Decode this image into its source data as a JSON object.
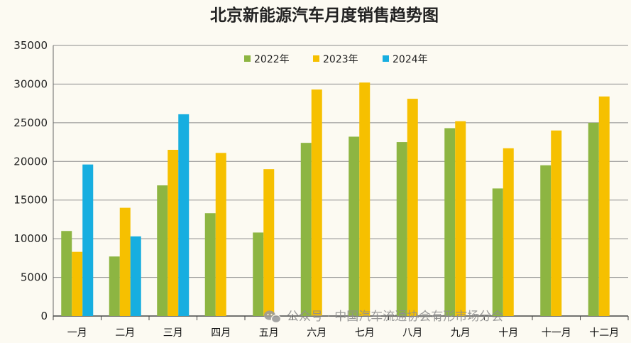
{
  "chart_data": {
    "type": "bar",
    "title": "北京新能源汽车月度销售趋势图",
    "xlabel": "",
    "ylabel": "",
    "ylim": [
      0,
      35000
    ],
    "yticks": [
      0,
      5000,
      10000,
      15000,
      20000,
      25000,
      30000,
      35000
    ],
    "grid": true,
    "legend_position": "top-center",
    "categories": [
      "一月",
      "二月",
      "三月",
      "四月",
      "五月",
      "六月",
      "七月",
      "八月",
      "九月",
      "十月",
      "十一月",
      "十二月"
    ],
    "series": [
      {
        "name": "2022年",
        "color": "#8db542",
        "values": [
          11000,
          7700,
          16900,
          13300,
          10800,
          22400,
          23200,
          22500,
          24300,
          16500,
          19500,
          25000
        ]
      },
      {
        "name": "2023年",
        "color": "#f6c000",
        "values": [
          8300,
          14000,
          21500,
          21100,
          19000,
          29300,
          30200,
          28100,
          25200,
          21700,
          24000,
          28400
        ]
      },
      {
        "name": "2024年",
        "color": "#17aee0",
        "values": [
          19600,
          10300,
          26100,
          null,
          null,
          null,
          null,
          null,
          null,
          null,
          null,
          null
        ]
      }
    ]
  },
  "watermark": {
    "icon": "wechat-icon",
    "text": "公众号 · 中国汽车流通协会有形市场分会"
  }
}
